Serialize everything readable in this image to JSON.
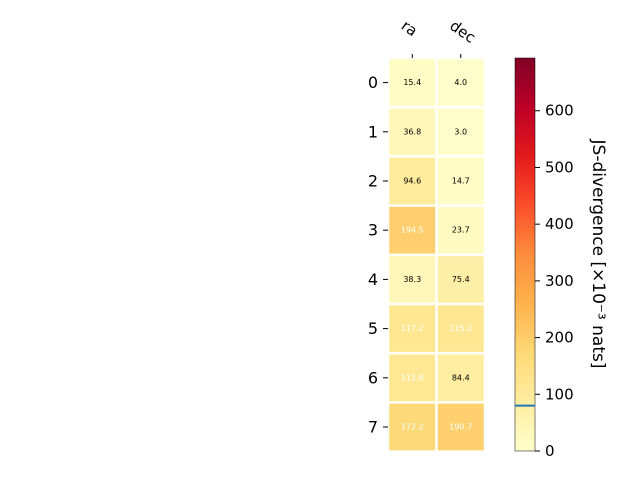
{
  "chart_data": {
    "type": "heatmap",
    "columns": [
      "ra",
      "dec"
    ],
    "rows": [
      "0",
      "1",
      "2",
      "3",
      "4",
      "5",
      "6",
      "7"
    ],
    "values": [
      [
        15.4,
        4.0
      ],
      [
        36.8,
        3.0
      ],
      [
        94.6,
        14.7
      ],
      [
        194.5,
        23.7
      ],
      [
        38.3,
        75.4
      ],
      [
        117.2,
        115.2
      ],
      [
        112.8,
        84.4
      ],
      [
        172.2,
        190.7
      ]
    ],
    "cell_labels": [
      [
        "15.4",
        "4.0"
      ],
      [
        "36.8",
        "3.0"
      ],
      [
        "94.6",
        "14.7"
      ],
      [
        "194.5",
        "23.7"
      ],
      [
        "38.3",
        "75.4"
      ],
      [
        "117.2",
        "115.2"
      ],
      [
        "112.8",
        "84.4"
      ],
      [
        "172.2",
        "190.7"
      ]
    ],
    "colorbar": {
      "label": "JS-divergence [×10⁻³ nats]",
      "range": [
        0,
        693
      ],
      "ticks": [
        0,
        100,
        200,
        300,
        400,
        500,
        600
      ],
      "marker_value": 80,
      "marker_color": "#1f77b4",
      "colormap": "YlOrRd"
    },
    "label_threshold": 100,
    "colors": {
      "cell_gap": "#ffffff",
      "dark_text": "#000000",
      "light_text": "#ffffff"
    }
  }
}
